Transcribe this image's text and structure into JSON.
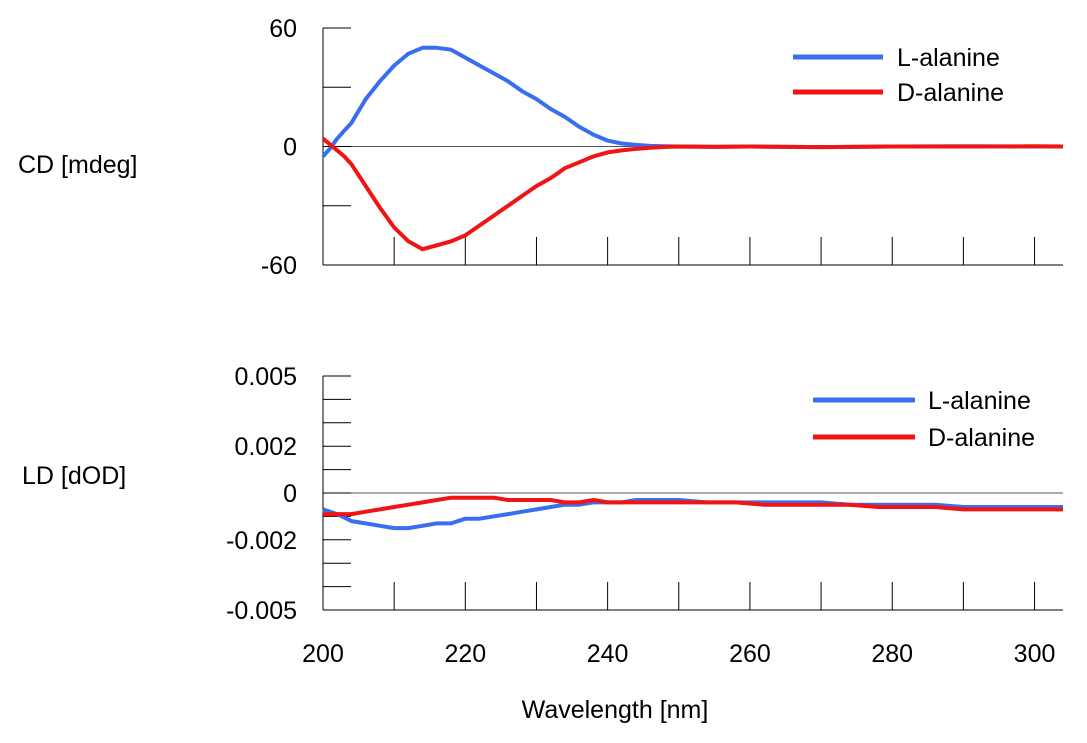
{
  "chart_data": [
    {
      "type": "line",
      "ylabel": "CD [mdeg]",
      "xlim": [
        200,
        304
      ],
      "ylim": [
        -60,
        60
      ],
      "yticks": [
        {
          "v": 60,
          "label": "60"
        },
        {
          "v": 0,
          "label": "0"
        },
        {
          "v": -60,
          "label": "-60"
        }
      ],
      "yminor": [
        30,
        -30
      ],
      "legend": "top-right",
      "series": [
        {
          "name": "L-alanine",
          "color": "#3a6ef0",
          "x": [
            200,
            201,
            202,
            203,
            204,
            205,
            206,
            208,
            210,
            212,
            214,
            216,
            218,
            220,
            222,
            224,
            226,
            228,
            230,
            232,
            234,
            236,
            238,
            240,
            242,
            244,
            246,
            248,
            250,
            255,
            260,
            270,
            280,
            290,
            300,
            304
          ],
          "y": [
            -5,
            -1,
            4,
            8,
            12,
            18,
            24,
            33,
            41,
            47,
            50,
            50,
            49,
            45,
            41,
            37,
            33,
            28,
            24,
            19,
            15,
            10,
            6,
            3,
            1.5,
            0.8,
            0.3,
            0.1,
            0,
            -0.2,
            0,
            -0.3,
            0,
            0.1,
            0,
            0
          ]
        },
        {
          "name": "D-alanine",
          "color": "#f01414",
          "x": [
            200,
            201,
            202,
            203,
            204,
            206,
            208,
            210,
            212,
            214,
            216,
            218,
            220,
            222,
            224,
            226,
            228,
            230,
            232,
            234,
            236,
            238,
            240,
            242,
            244,
            246,
            248,
            250,
            255,
            260,
            270,
            280,
            290,
            300,
            304
          ],
          "y": [
            4,
            1,
            -2,
            -5,
            -9,
            -20,
            -31,
            -41,
            -48,
            -52,
            -50,
            -48,
            -45,
            -40,
            -35,
            -30,
            -25,
            -20,
            -16,
            -11,
            -8,
            -5,
            -3,
            -2,
            -1.2,
            -0.6,
            -0.2,
            0,
            -0.1,
            0,
            -0.3,
            0,
            0,
            0.1,
            0
          ]
        }
      ]
    },
    {
      "type": "line",
      "xlabel": "Wavelength [nm]",
      "ylabel": "LD [dOD]",
      "xlim": [
        200,
        304
      ],
      "ylim": [
        -0.005,
        0.005
      ],
      "xticks": [
        200,
        220,
        240,
        260,
        280,
        300
      ],
      "yticks": [
        {
          "v": 0.005,
          "label": "0.005"
        },
        {
          "v": 0.002,
          "label": "0.002"
        },
        {
          "v": 0,
          "label": "0"
        },
        {
          "v": -0.002,
          "label": "-0.002"
        },
        {
          "v": -0.005,
          "label": "-0.005"
        }
      ],
      "yminor": [
        0.004,
        0.003,
        0.001,
        -0.001,
        -0.003,
        -0.004
      ],
      "legend": "top-right",
      "series": [
        {
          "name": "L-alanine",
          "color": "#3a6ef0",
          "x": [
            200,
            202,
            204,
            206,
            208,
            210,
            212,
            214,
            216,
            218,
            220,
            222,
            224,
            226,
            228,
            230,
            232,
            234,
            236,
            238,
            240,
            242,
            244,
            246,
            248,
            250,
            254,
            258,
            262,
            266,
            270,
            274,
            278,
            282,
            286,
            290,
            294,
            298,
            302,
            304
          ],
          "y": [
            -0.0007,
            -0.0009,
            -0.0012,
            -0.0013,
            -0.0014,
            -0.0015,
            -0.0015,
            -0.0014,
            -0.0013,
            -0.0013,
            -0.0011,
            -0.0011,
            -0.001,
            -0.0009,
            -0.0008,
            -0.0007,
            -0.0006,
            -0.0005,
            -0.0005,
            -0.0004,
            -0.0004,
            -0.0004,
            -0.0003,
            -0.0003,
            -0.0003,
            -0.0003,
            -0.0004,
            -0.0004,
            -0.0004,
            -0.0004,
            -0.0004,
            -0.0005,
            -0.0005,
            -0.0005,
            -0.0005,
            -0.0006,
            -0.0006,
            -0.0006,
            -0.0006,
            -0.0006
          ]
        },
        {
          "name": "D-alanine",
          "color": "#f01414",
          "x": [
            200,
            202,
            204,
            206,
            208,
            210,
            212,
            214,
            216,
            218,
            220,
            222,
            224,
            226,
            228,
            230,
            232,
            234,
            236,
            238,
            240,
            242,
            244,
            246,
            248,
            250,
            254,
            258,
            262,
            266,
            270,
            274,
            278,
            282,
            286,
            290,
            294,
            298,
            302,
            304
          ],
          "y": [
            -0.0009,
            -0.0009,
            -0.0009,
            -0.0008,
            -0.0007,
            -0.0006,
            -0.0005,
            -0.0004,
            -0.0003,
            -0.0002,
            -0.0002,
            -0.0002,
            -0.0002,
            -0.0003,
            -0.0003,
            -0.0003,
            -0.0003,
            -0.0004,
            -0.0004,
            -0.0003,
            -0.0004,
            -0.0004,
            -0.0004,
            -0.0004,
            -0.0004,
            -0.0004,
            -0.0004,
            -0.0004,
            -0.0005,
            -0.0005,
            -0.0005,
            -0.0005,
            -0.0006,
            -0.0006,
            -0.0006,
            -0.0007,
            -0.0007,
            -0.0007,
            -0.0007,
            -0.0007
          ]
        }
      ]
    }
  ]
}
